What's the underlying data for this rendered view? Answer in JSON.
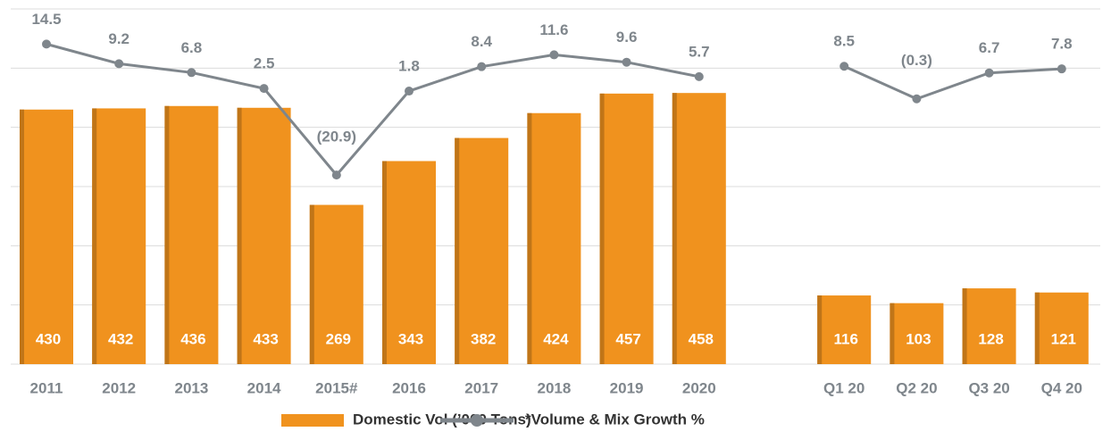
{
  "chart_data": {
    "type": "bar",
    "categories": [
      "2011",
      "2012",
      "2013",
      "2014",
      "2015#",
      "2016",
      "2017",
      "2018",
      "2019",
      "2020",
      null,
      "Q1 20",
      "Q2 20",
      "Q3 20",
      "Q4 20"
    ],
    "series": [
      {
        "name": "Domestic Vol (’000 Tons)",
        "type": "bar",
        "color": "#f0921e",
        "values": [
          430,
          432,
          436,
          433,
          269,
          343,
          382,
          424,
          457,
          458,
          null,
          116,
          103,
          128,
          121
        ]
      },
      {
        "name": "*Volume & Mix Growth %",
        "type": "line",
        "color": "#7f868c",
        "axis": "y2",
        "values": [
          14.5,
          9.2,
          6.8,
          2.5,
          -20.9,
          1.8,
          8.4,
          11.6,
          9.6,
          5.7,
          null,
          8.5,
          -0.3,
          6.7,
          7.8
        ],
        "value_labels": [
          "14.5",
          "9.2",
          "6.8",
          "2.5",
          "(20.9)",
          "1.8",
          "8.4",
          "11.6",
          "9.6",
          "5.7",
          null,
          "8.5",
          "(0.3)",
          "6.7",
          "7.8"
        ]
      }
    ],
    "ylim": [
      0,
      600
    ],
    "yticks": [
      0,
      100,
      200,
      300,
      400,
      500,
      600
    ],
    "y2lim": [
      -72,
      24
    ],
    "grid": true,
    "legend": "bottom"
  }
}
